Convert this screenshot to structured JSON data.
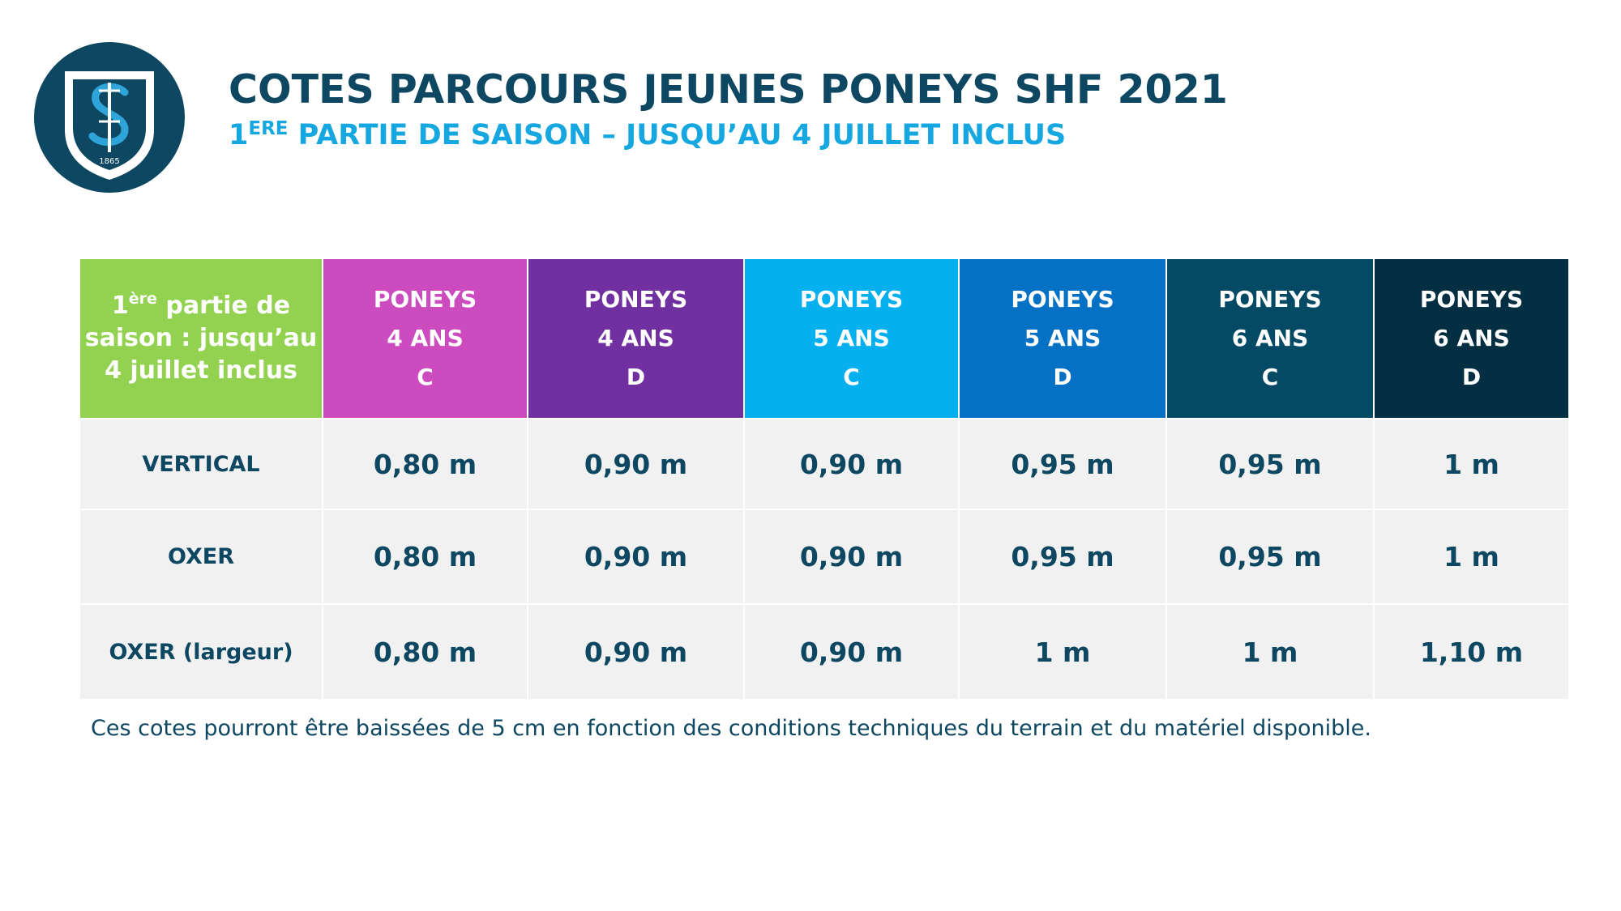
{
  "logo": {
    "year": "1865",
    "colors": {
      "circle": "#0d4761",
      "shield": "#ffffff",
      "monogram": "#2ea4d8"
    }
  },
  "header": {
    "title": "COTES PARCOURS JEUNES PONEYS SHF 2021",
    "subtitle_sup": "ERE",
    "subtitle_num": "1",
    "subtitle_rest": " PARTIE DE SAISON – JUSQU’AU 4 JUILLET INCLUS"
  },
  "table": {
    "corner": {
      "num": "1",
      "sup": "ère",
      "line1_rest": " partie de",
      "line2": "saison : jusqu’au",
      "line3": "4 juillet inclus"
    },
    "columns": [
      {
        "l1": "PONEYS",
        "l2": "4 ANS",
        "l3": "C",
        "color": "#cc4cbf"
      },
      {
        "l1": "PONEYS",
        "l2": "4 ANS",
        "l3": "D",
        "color": "#7130a0"
      },
      {
        "l1": "PONEYS",
        "l2": "5 ANS",
        "l3": "C",
        "color": "#06b0ee"
      },
      {
        "l1": "PONEYS",
        "l2": "5 ANS",
        "l3": "D",
        "color": "#0471c4"
      },
      {
        "l1": "PONEYS",
        "l2": "6 ANS",
        "l3": "C",
        "color": "#044a64"
      },
      {
        "l1": "PONEYS",
        "l2": "6 ANS",
        "l3": "D",
        "color": "#042e41"
      }
    ],
    "rows": [
      {
        "label": "VERTICAL",
        "values": [
          "0,80 m",
          "0,90 m",
          "0,90 m",
          "0,95 m",
          "0,95 m",
          "1 m"
        ]
      },
      {
        "label": "OXER",
        "values": [
          "0,80 m",
          "0,90 m",
          "0,90 m",
          "0,95 m",
          "0,95 m",
          "1 m"
        ]
      },
      {
        "label": "OXER (largeur)",
        "values": [
          "0,80 m",
          "0,90 m",
          "0,90 m",
          "1 m",
          "1 m",
          "1,10 m"
        ]
      }
    ]
  },
  "note": "Ces cotes pourront être baissées de 5 cm en fonction des conditions techniques du terrain et du matériel disponible."
}
